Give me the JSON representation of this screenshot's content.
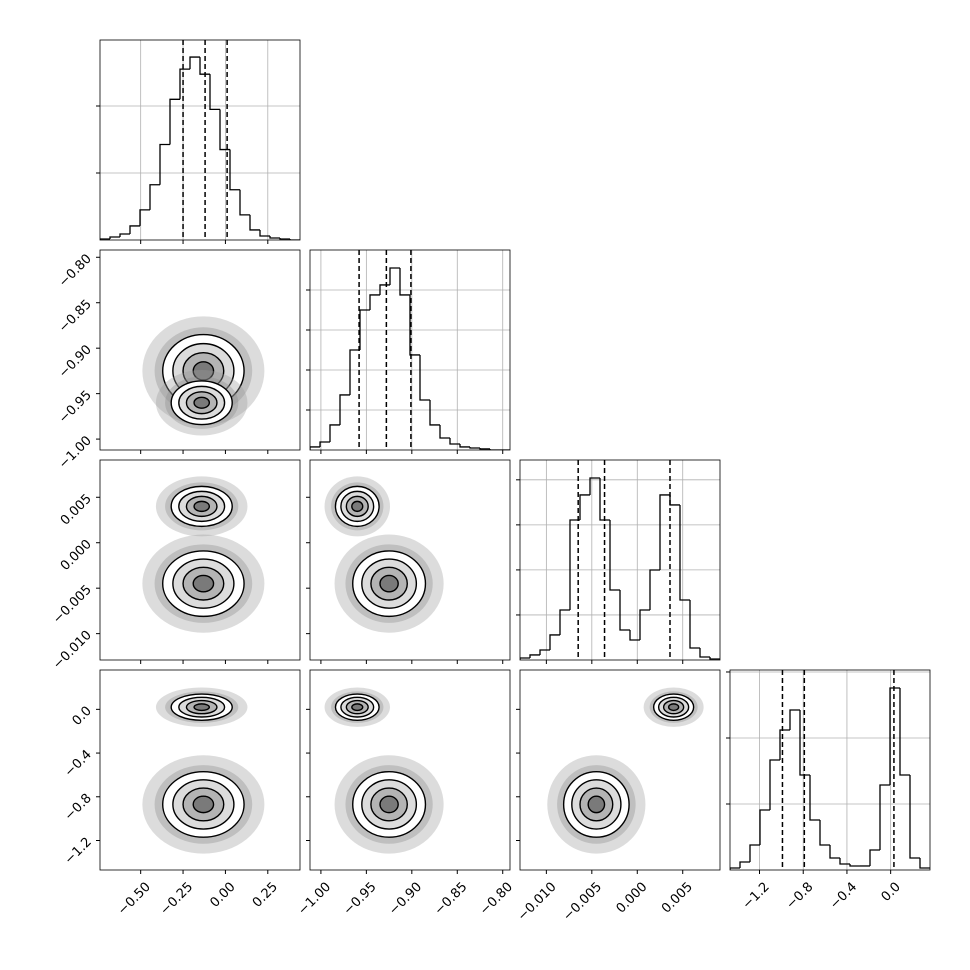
{
  "chart_data": {
    "type": "corner",
    "grid": true,
    "params": [
      {
        "xlim": [
          -0.74,
          0.44
        ],
        "ticks": [
          {
            "value": -0.5,
            "label": "−0.50"
          },
          {
            "value": -0.25,
            "label": "−0.25"
          },
          {
            "value": 0,
            "label": "0.00"
          },
          {
            "value": 0.25,
            "label": "0.25"
          }
        ],
        "bins": [
          -0.74,
          -0.681,
          -0.622,
          -0.563,
          -0.504,
          -0.445,
          -0.386,
          -0.327,
          -0.268,
          -0.209,
          -0.15,
          -0.091,
          -0.032,
          0.027,
          0.086,
          0.145,
          0.204,
          0.263,
          0.322,
          0.381,
          0.44
        ],
        "counts": [
          15,
          45,
          90,
          210,
          450,
          825,
          1425,
          2100,
          2550,
          2730,
          2475,
          1950,
          1350,
          750,
          375,
          150,
          60,
          30,
          15,
          0
        ],
        "hist_ylim": [
          0,
          2985
        ],
        "hist_yticks": [
          1000,
          2000
        ],
        "quantiles": [
          -0.25,
          -0.12,
          0.01
        ]
      },
      {
        "xlim": [
          -1.012,
          -0.792
        ],
        "ticks": [
          {
            "value": -1.0,
            "label": "−1.00"
          },
          {
            "value": -0.95,
            "label": "−0.95"
          },
          {
            "value": -0.9,
            "label": "−0.90"
          },
          {
            "value": -0.85,
            "label": "−0.85"
          },
          {
            "value": -0.8,
            "label": "−0.80"
          }
        ],
        "bins": [
          -1.012,
          -1.001,
          -0.99,
          -0.979,
          -0.968,
          -0.957,
          -0.946,
          -0.935,
          -0.924,
          -0.913,
          -0.902,
          -0.891,
          -0.88,
          -0.869,
          -0.858,
          -0.847,
          -0.836,
          -0.825,
          -0.814,
          -0.803,
          -0.792
        ],
        "counts": [
          38,
          100,
          313,
          688,
          1250,
          1750,
          1938,
          2063,
          2275,
          1938,
          1188,
          625,
          313,
          150,
          75,
          38,
          25,
          13,
          0,
          0
        ],
        "hist_ylim": [
          0,
          2500
        ],
        "hist_yticks": [
          500,
          1000,
          1500,
          2000
        ],
        "quantiles": [
          -0.958,
          -0.928,
          -0.901
        ]
      },
      {
        "xlim": [
          -0.0129,
          0.0091
        ],
        "ticks": [
          {
            "value": -0.01,
            "label": "−0.010"
          },
          {
            "value": -0.005,
            "label": "−0.005"
          },
          {
            "value": 0,
            "label": "0.000"
          },
          {
            "value": 0.005,
            "label": "0.005"
          }
        ],
        "bins": [
          -0.0129,
          -0.0118,
          -0.0107,
          -0.0096,
          -0.0085,
          -0.0074,
          -0.0063,
          -0.0052,
          -0.0041,
          -0.003,
          -0.0019,
          -0.0008,
          0.0003,
          0.0014,
          0.0025,
          0.0036,
          0.0047,
          0.0058,
          0.0069,
          0.008,
          0.0091
        ],
        "counts": [
          22,
          56,
          111,
          278,
          555,
          1554,
          1832,
          2020,
          1554,
          777,
          333,
          222,
          555,
          999,
          1832,
          1721,
          666,
          133,
          33,
          11
        ],
        "hist_ylim": [
          0,
          2220
        ],
        "hist_yticks": [
          500,
          1000,
          1500,
          2000
        ],
        "quantiles": [
          -0.0065,
          -0.0036,
          0.0036
        ]
      },
      {
        "xlim": [
          -1.47,
          0.36
        ],
        "ticks": [
          {
            "value": -1.2,
            "label": "−1.2"
          },
          {
            "value": -0.8,
            "label": "−0.8"
          },
          {
            "value": -0.4,
            "label": "−0.4"
          },
          {
            "value": 0,
            "label": "0.0"
          }
        ],
        "bins": [
          -1.47,
          -1.3785,
          -1.287,
          -1.1955,
          -1.104,
          -1.0125,
          -0.921,
          -0.8295,
          -0.738,
          -0.6465,
          -0.555,
          -0.4635,
          -0.372,
          -0.2805,
          -0.189,
          -0.0975,
          -0.006,
          0.0855,
          0.177,
          0.2685,
          0.36
        ],
        "counts": [
          30,
          121,
          379,
          909,
          1667,
          2121,
          2424,
          1439,
          758,
          379,
          182,
          91,
          61,
          61,
          303,
          1288,
          2757,
          1439,
          182,
          30
        ],
        "hist_ylim": [
          0,
          3030
        ],
        "hist_yticks": [
          1000,
          2000,
          3000
        ],
        "quantiles": [
          -0.99,
          -0.79,
          0.03
        ]
      }
    ],
    "modes": [
      {
        "centers": [
          -0.13,
          -0.925,
          -0.0045,
          -0.87
        ],
        "sds": [
          0.12,
          0.02,
          0.0018,
          0.15
        ]
      },
      {
        "centers": [
          -0.14,
          -0.96,
          0.004,
          0.02
        ],
        "sds": [
          0.09,
          0.012,
          0.0011,
          0.06
        ]
      }
    ]
  }
}
